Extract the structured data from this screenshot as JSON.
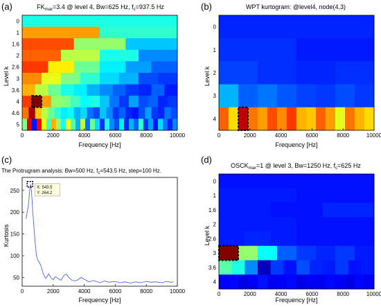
{
  "chart_data": [
    {
      "panel_label": "(a)",
      "type": "heatmap",
      "title": {
        "pre": "FK",
        "sub": "max",
        "post": "=3.4 @ level 4, Bw=625 Hz, f",
        "sub2": "c",
        "post2": "=937.5 Hz"
      },
      "xlabel": "Frequency [Hz]",
      "ylabel": "Level k",
      "xlim": [
        0,
        10000
      ],
      "xticks": [
        "0",
        "2000",
        "4000",
        "6000",
        "8000",
        "10000"
      ],
      "ytick_labels": [
        "0",
        "1",
        "1.6",
        "2",
        "2.6",
        "3",
        "3.6",
        "4",
        "4.6",
        "5"
      ],
      "colormap": "jet",
      "max_kurtosis": 3.4,
      "selected": {
        "level": "4",
        "bw_hz": 625,
        "fc_hz": 937.5
      },
      "rows": [
        {
          "level": "0",
          "values": [
            0.4
          ]
        },
        {
          "level": "1",
          "values": [
            0.72,
            0.42
          ]
        },
        {
          "level": "1.6",
          "values": [
            0.8,
            0.52,
            0.32
          ]
        },
        {
          "level": "2",
          "values": [
            0.78,
            0.56,
            0.4,
            0.26
          ]
        },
        {
          "level": "2.6",
          "values": [
            0.82,
            0.64,
            0.48,
            0.36,
            0.28,
            0.22
          ]
        },
        {
          "level": "3",
          "values": [
            0.74,
            0.6,
            0.5,
            0.42,
            0.34,
            0.3,
            0.2,
            0.18
          ]
        },
        {
          "level": "3.6",
          "values": [
            0.7,
            0.56,
            0.48,
            0.4,
            0.36,
            0.3,
            0.26,
            0.22,
            0.18,
            0.16,
            0.22,
            0.15
          ]
        },
        {
          "level": "4",
          "values": [
            0.82,
            1.0,
            0.72,
            0.52,
            0.5,
            0.44,
            0.38,
            0.4,
            0.32,
            0.24,
            0.18,
            0.28,
            0.2,
            0.22,
            0.16,
            0.18
          ]
        },
        {
          "level": "4.6",
          "values": [
            0.76,
            0.96,
            0.68,
            0.56,
            0.48,
            0.42,
            0.36,
            0.38,
            0.3,
            0.34,
            0.24,
            0.2,
            0.32,
            0.26,
            0.18,
            0.22,
            0.16,
            0.14,
            0.2,
            0.28,
            0.18,
            0.16,
            0.24,
            0.2
          ]
        },
        {
          "level": "5",
          "values": [
            0.5,
            0.9,
            0.14,
            0.88,
            0.6,
            0.44,
            0.7,
            0.52,
            0.4,
            0.62,
            0.46,
            0.3,
            0.56,
            0.24,
            0.48,
            0.34,
            0.18,
            0.4,
            0.26,
            0.2,
            0.36,
            0.16,
            0.3,
            0.22,
            0.42,
            0.18,
            0.28,
            0.14,
            0.34,
            0.24,
            0.16,
            0.26
          ]
        }
      ]
    },
    {
      "panel_label": "(b)",
      "type": "heatmap",
      "title": {
        "pre": "WPT kurtogram: @level4, node(4,3)"
      },
      "xlabel": "Frequency [Hz]",
      "ylabel": "Level k",
      "xlim": [
        0,
        10000
      ],
      "xticks": [
        "0",
        "2000",
        "4000",
        "6000",
        "8000",
        "10000"
      ],
      "ytick_labels": [
        "0",
        "1",
        "2",
        "3",
        "4"
      ],
      "colormap": "jet",
      "selected": {
        "level": "4",
        "node": "(4,3)"
      },
      "rows": [
        {
          "level": "0",
          "values": [
            0.16
          ]
        },
        {
          "level": "1",
          "values": [
            0.17,
            0.15
          ]
        },
        {
          "level": "2",
          "values": [
            0.19,
            0.17,
            0.16,
            0.17
          ]
        },
        {
          "level": "3",
          "values": [
            0.3,
            0.22,
            0.24,
            0.21,
            0.19,
            0.18,
            0.2,
            0.18
          ]
        },
        {
          "level": "4",
          "values": [
            0.78,
            0.66,
            0.94,
            0.76,
            0.72,
            0.8,
            0.74,
            0.82,
            0.7,
            0.68,
            0.78,
            0.72,
            0.6,
            0.76,
            0.7,
            0.66
          ]
        }
      ]
    },
    {
      "panel_label": "(c)",
      "type": "line",
      "title": {
        "pre": "The Protrugram analysis: Bw=500 Hz, f",
        "sub": "c",
        "post": "=543.5 Hz, step=100 Hz."
      },
      "xlabel": "Frequency [Hz]",
      "ylabel": "Kurtosis",
      "xlim": [
        0,
        10000
      ],
      "ylim": [
        30,
        280
      ],
      "xticks": [
        "0",
        "2000",
        "4000",
        "6000",
        "8000",
        "10000"
      ],
      "yticks": [
        50,
        100,
        150,
        200,
        250
      ],
      "datatip": {
        "x_label": "X: 543.5",
        "y_label": "Y: 264.2",
        "x": 543.5,
        "y": 264.2
      },
      "series": [
        {
          "color": "#3b4fe0",
          "x": [
            250,
            320,
            400,
            460,
            500,
            543.5,
            600,
            680,
            760,
            840,
            920,
            1000,
            1100,
            1200,
            1350,
            1500,
            1600,
            1700,
            1850,
            2000,
            2150,
            2300,
            2500,
            2700,
            2850,
            3000,
            3200,
            3400,
            3600,
            3800,
            4000,
            4300,
            4600,
            5000,
            5300,
            5600,
            6000,
            6300,
            6600,
            7000,
            7300,
            7600,
            8000,
            8300,
            8600,
            9000,
            9300,
            9600,
            9750
          ],
          "y": [
            185,
            200,
            215,
            240,
            255,
            264.2,
            250,
            205,
            165,
            130,
            100,
            90,
            85,
            78,
            60,
            48,
            52,
            58,
            50,
            45,
            52,
            48,
            44,
            55,
            58,
            50,
            44,
            42,
            45,
            50,
            46,
            40,
            43,
            38,
            42,
            39,
            41,
            38,
            40,
            37,
            40,
            38,
            41,
            39,
            40,
            38,
            41,
            39,
            40
          ]
        }
      ]
    },
    {
      "panel_label": "(d)",
      "type": "heatmap",
      "title": {
        "pre": "OSCK",
        "sub": "max",
        "post": "=1 @ level 3, Bw=1250 Hz, f",
        "sub2": "c",
        "post2": "=625 Hz"
      },
      "xlabel": "Frequency [Hz]",
      "ylabel": "Level k",
      "xlim": [
        0,
        10000
      ],
      "xticks": [
        "0",
        "2000",
        "4000",
        "6000",
        "8000",
        "10000"
      ],
      "ytick_labels": [
        "0",
        "1",
        "1.6",
        "2",
        "2.6",
        "3",
        "3.6",
        "4"
      ],
      "colormap": "jet",
      "max_osck": 1,
      "selected": {
        "level": "3",
        "bw_hz": 1250,
        "fc_hz": 625
      },
      "rows": [
        {
          "level": "0",
          "values": [
            0.14
          ]
        },
        {
          "level": "1",
          "values": [
            0.15,
            0.14
          ]
        },
        {
          "level": "1.6",
          "values": [
            0.15,
            0.14,
            0.16
          ]
        },
        {
          "level": "2",
          "values": [
            0.15,
            0.15,
            0.14,
            0.14
          ]
        },
        {
          "level": "2.6",
          "values": [
            0.15,
            0.16,
            0.15,
            0.14,
            0.14,
            0.14
          ]
        },
        {
          "level": "3",
          "values": [
            1.0,
            0.52,
            0.38,
            0.22,
            0.18,
            0.16,
            0.18,
            0.15
          ]
        },
        {
          "level": "3.6",
          "values": [
            0.46,
            0.4,
            0.26,
            0.06,
            0.18,
            0.14,
            0.2,
            0.16,
            0.15,
            0.18,
            0.14,
            0.15
          ]
        },
        {
          "level": "4",
          "values": [
            0.12,
            0.13,
            0.1,
            0.12,
            0.14,
            0.11,
            0.12,
            0.13,
            0.1,
            0.12,
            0.11,
            0.13,
            0.12,
            0.1,
            0.13,
            0.11
          ]
        }
      ]
    }
  ]
}
